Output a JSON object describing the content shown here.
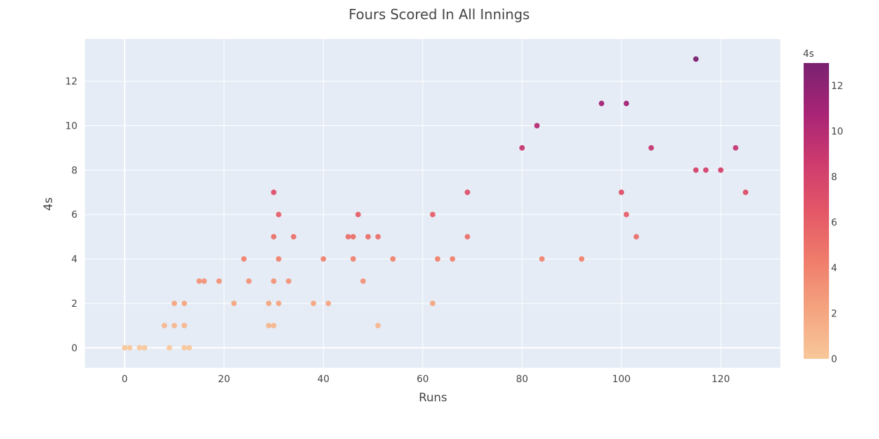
{
  "chart_data": {
    "type": "scatter",
    "title": "Fours Scored In All Innings",
    "xlabel": "Runs",
    "ylabel": "4s",
    "xlim": [
      -8,
      132
    ],
    "ylim": [
      -0.9,
      13.9
    ],
    "xticks": [
      0,
      20,
      40,
      60,
      80,
      100,
      120
    ],
    "yticks": [
      0,
      2,
      4,
      6,
      8,
      10,
      12
    ],
    "grid": true,
    "colorbar": {
      "title": "4s",
      "range": [
        0,
        13
      ],
      "ticks": [
        0,
        2,
        4,
        6,
        8,
        10,
        12
      ],
      "colorscale": [
        "#f8c79a",
        "#f4a37f",
        "#ef7d6b",
        "#e35767",
        "#cc3a6e",
        "#a82476",
        "#7a2170"
      ]
    },
    "background_color": "#e5ecf6",
    "points": [
      {
        "x": 0,
        "y": 0
      },
      {
        "x": 1,
        "y": 0
      },
      {
        "x": 3,
        "y": 0
      },
      {
        "x": 4,
        "y": 0
      },
      {
        "x": 9,
        "y": 0
      },
      {
        "x": 12,
        "y": 0
      },
      {
        "x": 13,
        "y": 0
      },
      {
        "x": 8,
        "y": 1
      },
      {
        "x": 10,
        "y": 1
      },
      {
        "x": 12,
        "y": 1
      },
      {
        "x": 29,
        "y": 1
      },
      {
        "x": 30,
        "y": 1
      },
      {
        "x": 51,
        "y": 1
      },
      {
        "x": 10,
        "y": 2
      },
      {
        "x": 12,
        "y": 2
      },
      {
        "x": 22,
        "y": 2
      },
      {
        "x": 29,
        "y": 2
      },
      {
        "x": 31,
        "y": 2
      },
      {
        "x": 38,
        "y": 2
      },
      {
        "x": 41,
        "y": 2
      },
      {
        "x": 62,
        "y": 2
      },
      {
        "x": 15,
        "y": 3
      },
      {
        "x": 16,
        "y": 3
      },
      {
        "x": 19,
        "y": 3
      },
      {
        "x": 25,
        "y": 3
      },
      {
        "x": 30,
        "y": 3
      },
      {
        "x": 33,
        "y": 3
      },
      {
        "x": 48,
        "y": 3
      },
      {
        "x": 24,
        "y": 4
      },
      {
        "x": 31,
        "y": 4
      },
      {
        "x": 40,
        "y": 4
      },
      {
        "x": 46,
        "y": 4
      },
      {
        "x": 54,
        "y": 4
      },
      {
        "x": 63,
        "y": 4
      },
      {
        "x": 66,
        "y": 4
      },
      {
        "x": 84,
        "y": 4
      },
      {
        "x": 92,
        "y": 4
      },
      {
        "x": 30,
        "y": 5
      },
      {
        "x": 34,
        "y": 5
      },
      {
        "x": 45,
        "y": 5
      },
      {
        "x": 46,
        "y": 5
      },
      {
        "x": 49,
        "y": 5
      },
      {
        "x": 51,
        "y": 5
      },
      {
        "x": 69,
        "y": 5
      },
      {
        "x": 103,
        "y": 5
      },
      {
        "x": 31,
        "y": 6
      },
      {
        "x": 47,
        "y": 6
      },
      {
        "x": 62,
        "y": 6
      },
      {
        "x": 101,
        "y": 6
      },
      {
        "x": 30,
        "y": 7
      },
      {
        "x": 69,
        "y": 7
      },
      {
        "x": 100,
        "y": 7
      },
      {
        "x": 125,
        "y": 7
      },
      {
        "x": 115,
        "y": 8
      },
      {
        "x": 117,
        "y": 8
      },
      {
        "x": 120,
        "y": 8
      },
      {
        "x": 80,
        "y": 9
      },
      {
        "x": 106,
        "y": 9
      },
      {
        "x": 123,
        "y": 9
      },
      {
        "x": 83,
        "y": 10
      },
      {
        "x": 96,
        "y": 11
      },
      {
        "x": 101,
        "y": 11
      },
      {
        "x": 115,
        "y": 13
      }
    ]
  }
}
